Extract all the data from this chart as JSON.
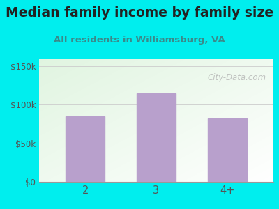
{
  "title": "Median family income by family size",
  "subtitle": "All residents in Williamsburg, VA",
  "categories": [
    "2",
    "3",
    "4+"
  ],
  "values": [
    85000,
    115000,
    82000
  ],
  "bar_color": "#b8a0cc",
  "yticks": [
    0,
    50000,
    100000,
    150000
  ],
  "ytick_labels": [
    "$0",
    "$50k",
    "$100k",
    "$150k"
  ],
  "ylim": [
    0,
    160000
  ],
  "outer_bg": "#00eeee",
  "title_color": "#222222",
  "subtitle_color": "#3a8a8a",
  "tick_color": "#555555",
  "grid_color": "#cccccc",
  "watermark": "City-Data.com",
  "watermark_color": "#b0b0b0",
  "plot_bg_colors": [
    "#e8f5e0",
    "#f8fff4"
  ],
  "title_fontsize": 13.5,
  "subtitle_fontsize": 9.5
}
